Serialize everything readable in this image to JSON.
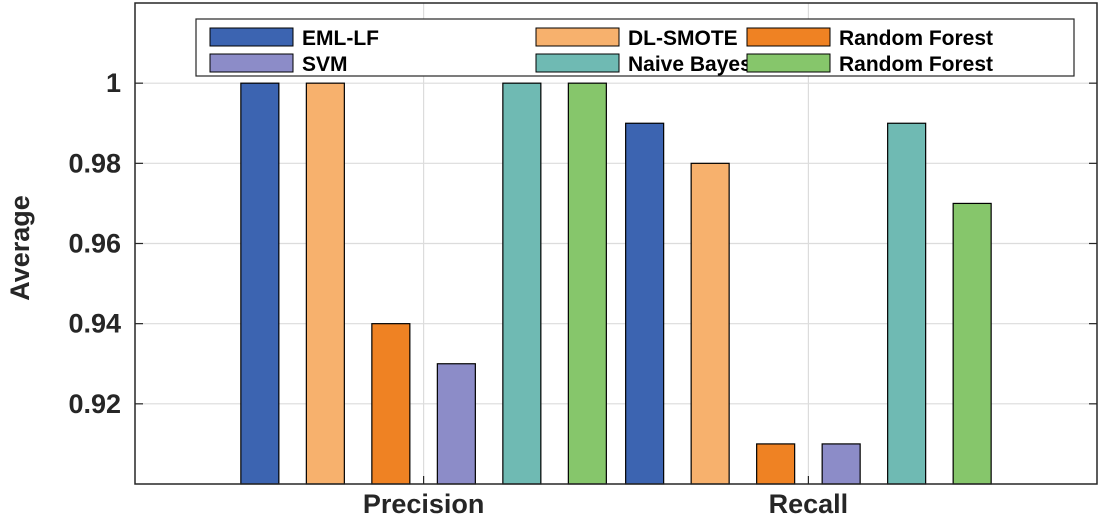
{
  "chart_data": {
    "type": "bar",
    "title": "",
    "xlabel": "",
    "ylabel": "Average",
    "ylim": [
      0.9,
      1.02
    ],
    "yticks": [
      0.92,
      0.94,
      0.96,
      0.98,
      1
    ],
    "ytick_labels": [
      "0.92",
      "0.94",
      "0.96",
      "0.98",
      "1"
    ],
    "grid": true,
    "legend_position": "top",
    "categories": [
      "Precision",
      "Recall"
    ],
    "series": [
      {
        "name": "EML-LF",
        "color": "#3c64b1",
        "values": [
          1.0,
          0.99
        ]
      },
      {
        "name": "DL-SMOTE",
        "color": "#f7b16d",
        "values": [
          1.0,
          0.98
        ]
      },
      {
        "name": "Random Forest",
        "color": "#ef8223",
        "values": [
          0.94,
          0.91
        ]
      },
      {
        "name": "SVM",
        "color": "#8c8cc8",
        "values": [
          0.93,
          0.91
        ]
      },
      {
        "name": "Naive Bayes",
        "color": "#6fbab3",
        "values": [
          1.0,
          0.99
        ]
      },
      {
        "name": "Random Forest",
        "color": "#86c66b",
        "values": [
          1.0,
          0.97
        ]
      }
    ]
  }
}
